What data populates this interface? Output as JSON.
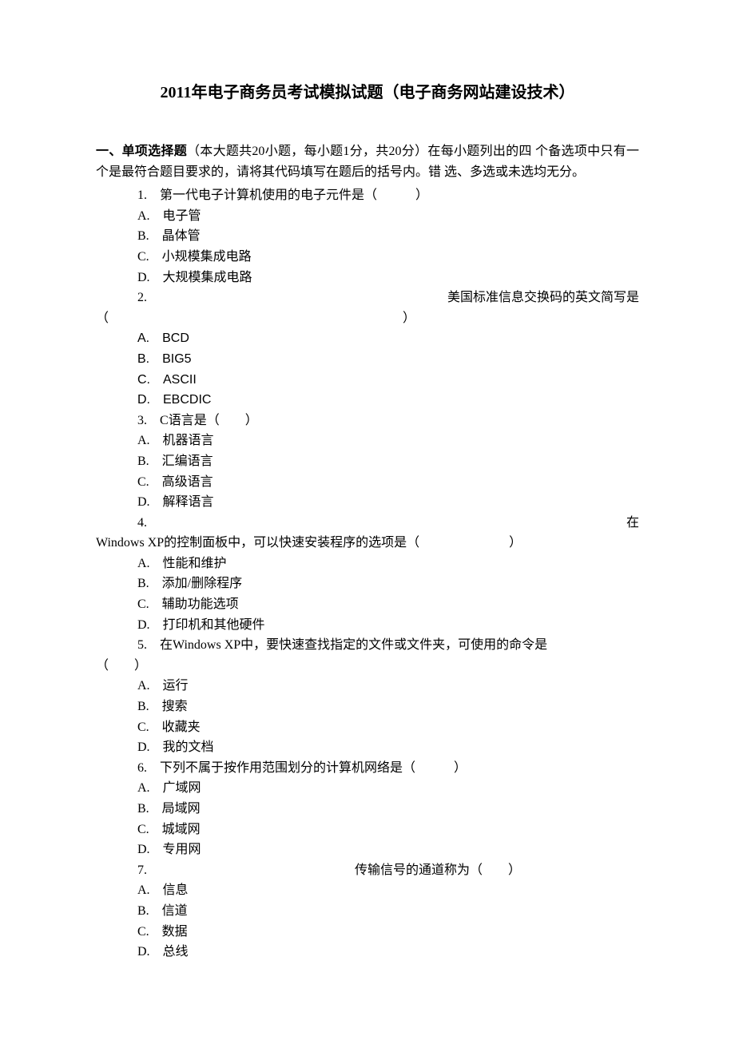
{
  "title": "2011年电子商务员考试模拟试题（电子商务网站建设技术）",
  "section": {
    "label": "一、单项选择题",
    "instruction_part1": "（本大题共20小题，每小题1分，共20分）在每小题列出的四 个备选项中只有一个是最符合题目要求的，请将其代码填写在题后的括号内。错 选、多选或未选均无分。"
  },
  "q1": {
    "num": "1.",
    "stem": "第一代电子计算机使用的电子元件是（　　　）",
    "A": "A.　电子管",
    "B": "B.　晶体管",
    "C": "C.　小规模集成电路",
    "D": "D.　大规模集成电路"
  },
  "q2": {
    "num": "2.",
    "stem": "美国标准信息交换码的英文简写是",
    "cont": "（　　　　　　　　　　　　　　　　　　　　　　　）",
    "A": "A.　BCD",
    "B": "B.　BIG5",
    "C": "C.　ASCII",
    "D": "D.　EBCDIC"
  },
  "q3": {
    "num": "3.",
    "stem": "C语言是（　　）",
    "A": "A.　机器语言",
    "B": "B.　汇编语言",
    "C": "C.　高级语言",
    "D": "D.　解释语言"
  },
  "q4": {
    "num": "4.",
    "stem": "在",
    "cont": "Windows XP的控制面板中，可以快速安装程序的选项是（　　　　　　　）",
    "A": "A.　性能和维护",
    "B": "B.　添加/删除程序",
    "C": "C.　辅助功能选项",
    "D": "D.　打印机和其他硬件"
  },
  "q5": {
    "num": "5.",
    "stem": "在Windows XP中，要快速查找指定的文件或文件夹，可使用的命令是",
    "cont": "（　　）",
    "A": "A.　运行",
    "B": "B.　搜索",
    "C": "C.　收藏夹",
    "D": "D.　我的文档"
  },
  "q6": {
    "num": "6.",
    "stem": "下列不属于按作用范围划分的计算机网络是（　　　）",
    "A": "A.　广域网",
    "B": "B.　局域网",
    "C": "C.　城域网",
    "D": "D.　专用网"
  },
  "q7": {
    "num": "7.",
    "stem": "传输信号的通道称为（　　）",
    "A": "A.　信息",
    "B": "B.　信道",
    "C": "C.　数据",
    "D": "D.　总线"
  }
}
